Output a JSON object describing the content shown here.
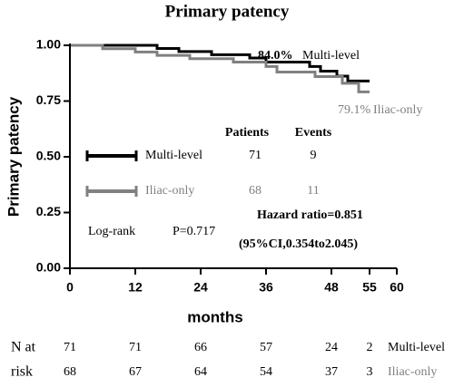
{
  "chart_data": {
    "type": "line",
    "step": true,
    "title": "Primary patency",
    "x_label": "months",
    "y_label": "Primary patency",
    "xlim": [
      0,
      60
    ],
    "ylim": [
      0,
      1
    ],
    "xticks": [
      0,
      12,
      24,
      36,
      48,
      55,
      60
    ],
    "yticks": [
      {
        "value": 0,
        "label": "0.00"
      },
      {
        "value": 0.25,
        "label": "0.25"
      },
      {
        "value": 0.5,
        "label": "0.50"
      },
      {
        "value": 0.75,
        "label": "0.75"
      },
      {
        "value": 1,
        "label": "1.00"
      }
    ],
    "series": [
      {
        "name": "Multi-level",
        "color": "#000000",
        "x": [
          0,
          16,
          20,
          26,
          33,
          36,
          44,
          46,
          49,
          51,
          55
        ],
        "values": [
          1,
          0.986,
          0.972,
          0.958,
          0.943,
          0.925,
          0.905,
          0.884,
          0.862,
          0.84,
          0.84
        ],
        "end_label": "84.0%"
      },
      {
        "name": "Iliac-only",
        "color": "#808080",
        "x": [
          0,
          6,
          12,
          16,
          22,
          30,
          36,
          38,
          45,
          50,
          53,
          55
        ],
        "values": [
          1,
          0.985,
          0.97,
          0.955,
          0.94,
          0.925,
          0.905,
          0.88,
          0.86,
          0.83,
          0.791,
          0.791
        ],
        "end_label": "79.1%"
      }
    ],
    "summary": {
      "headers": [
        "Patients",
        "Events"
      ],
      "rows": [
        [
          71,
          9
        ],
        [
          68,
          11
        ]
      ]
    },
    "log_rank": {
      "label": "Log-rank",
      "p": "P=0.717"
    },
    "hazard_ratio": "Hazard ratio=0.851",
    "ci": "(95%CI,0.354to2.045)",
    "risk_table": {
      "label": [
        "N at",
        "risk"
      ],
      "times": [
        0,
        12,
        24,
        36,
        48,
        55
      ],
      "rows": [
        [
          71,
          71,
          66,
          57,
          24,
          2
        ],
        [
          68,
          67,
          64,
          54,
          37,
          3
        ]
      ]
    }
  }
}
